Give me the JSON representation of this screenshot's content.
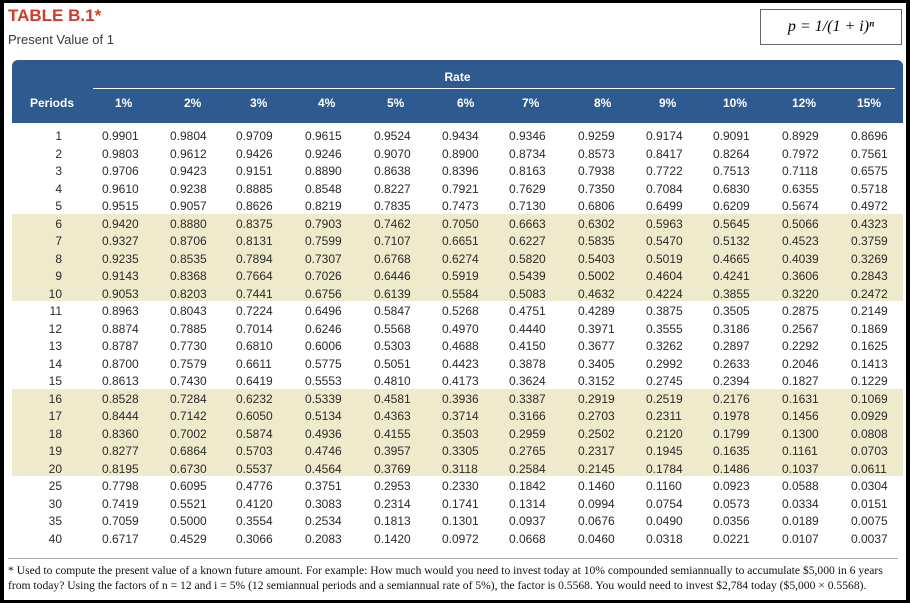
{
  "header": {
    "title": "TABLE B.1*",
    "subtitle": "Present Value of 1",
    "formula": "p = 1/(1 + i)ⁿ"
  },
  "table": {
    "rate_label": "Rate",
    "period_header": "Periods",
    "rates": [
      "1%",
      "2%",
      "3%",
      "4%",
      "5%",
      "6%",
      "7%",
      "8%",
      "9%",
      "10%",
      "12%",
      "15%"
    ],
    "rows": [
      {
        "period": "1",
        "values": [
          "0.9901",
          "0.9804",
          "0.9709",
          "0.9615",
          "0.9524",
          "0.9434",
          "0.9346",
          "0.9259",
          "0.9174",
          "0.9091",
          "0.8929",
          "0.8696"
        ]
      },
      {
        "period": "2",
        "values": [
          "0.9803",
          "0.9612",
          "0.9426",
          "0.9246",
          "0.9070",
          "0.8900",
          "0.8734",
          "0.8573",
          "0.8417",
          "0.8264",
          "0.7972",
          "0.7561"
        ]
      },
      {
        "period": "3",
        "values": [
          "0.9706",
          "0.9423",
          "0.9151",
          "0.8890",
          "0.8638",
          "0.8396",
          "0.8163",
          "0.7938",
          "0.7722",
          "0.7513",
          "0.7118",
          "0.6575"
        ]
      },
      {
        "period": "4",
        "values": [
          "0.9610",
          "0.9238",
          "0.8885",
          "0.8548",
          "0.8227",
          "0.7921",
          "0.7629",
          "0.7350",
          "0.7084",
          "0.6830",
          "0.6355",
          "0.5718"
        ]
      },
      {
        "period": "5",
        "values": [
          "0.9515",
          "0.9057",
          "0.8626",
          "0.8219",
          "0.7835",
          "0.7473",
          "0.7130",
          "0.6806",
          "0.6499",
          "0.6209",
          "0.5674",
          "0.4972"
        ]
      },
      {
        "period": "6",
        "values": [
          "0.9420",
          "0.8880",
          "0.8375",
          "0.7903",
          "0.7462",
          "0.7050",
          "0.6663",
          "0.6302",
          "0.5963",
          "0.5645",
          "0.5066",
          "0.4323"
        ]
      },
      {
        "period": "7",
        "values": [
          "0.9327",
          "0.8706",
          "0.8131",
          "0.7599",
          "0.7107",
          "0.6651",
          "0.6227",
          "0.5835",
          "0.5470",
          "0.5132",
          "0.4523",
          "0.3759"
        ]
      },
      {
        "period": "8",
        "values": [
          "0.9235",
          "0.8535",
          "0.7894",
          "0.7307",
          "0.6768",
          "0.6274",
          "0.5820",
          "0.5403",
          "0.5019",
          "0.4665",
          "0.4039",
          "0.3269"
        ]
      },
      {
        "period": "9",
        "values": [
          "0.9143",
          "0.8368",
          "0.7664",
          "0.7026",
          "0.6446",
          "0.5919",
          "0.5439",
          "0.5002",
          "0.4604",
          "0.4241",
          "0.3606",
          "0.2843"
        ]
      },
      {
        "period": "10",
        "values": [
          "0.9053",
          "0.8203",
          "0.7441",
          "0.6756",
          "0.6139",
          "0.5584",
          "0.5083",
          "0.4632",
          "0.4224",
          "0.3855",
          "0.3220",
          "0.2472"
        ]
      },
      {
        "period": "11",
        "values": [
          "0.8963",
          "0.8043",
          "0.7224",
          "0.6496",
          "0.5847",
          "0.5268",
          "0.4751",
          "0.4289",
          "0.3875",
          "0.3505",
          "0.2875",
          "0.2149"
        ]
      },
      {
        "period": "12",
        "values": [
          "0.8874",
          "0.7885",
          "0.7014",
          "0.6246",
          "0.5568",
          "0.4970",
          "0.4440",
          "0.3971",
          "0.3555",
          "0.3186",
          "0.2567",
          "0.1869"
        ]
      },
      {
        "period": "13",
        "values": [
          "0.8787",
          "0.7730",
          "0.6810",
          "0.6006",
          "0.5303",
          "0.4688",
          "0.4150",
          "0.3677",
          "0.3262",
          "0.2897",
          "0.2292",
          "0.1625"
        ]
      },
      {
        "period": "14",
        "values": [
          "0.8700",
          "0.7579",
          "0.6611",
          "0.5775",
          "0.5051",
          "0.4423",
          "0.3878",
          "0.3405",
          "0.2992",
          "0.2633",
          "0.2046",
          "0.1413"
        ]
      },
      {
        "period": "15",
        "values": [
          "0.8613",
          "0.7430",
          "0.6419",
          "0.5553",
          "0.4810",
          "0.4173",
          "0.3624",
          "0.3152",
          "0.2745",
          "0.2394",
          "0.1827",
          "0.1229"
        ]
      },
      {
        "period": "16",
        "values": [
          "0.8528",
          "0.7284",
          "0.6232",
          "0.5339",
          "0.4581",
          "0.3936",
          "0.3387",
          "0.2919",
          "0.2519",
          "0.2176",
          "0.1631",
          "0.1069"
        ]
      },
      {
        "period": "17",
        "values": [
          "0.8444",
          "0.7142",
          "0.6050",
          "0.5134",
          "0.4363",
          "0.3714",
          "0.3166",
          "0.2703",
          "0.2311",
          "0.1978",
          "0.1456",
          "0.0929"
        ]
      },
      {
        "period": "18",
        "values": [
          "0.8360",
          "0.7002",
          "0.5874",
          "0.4936",
          "0.4155",
          "0.3503",
          "0.2959",
          "0.2502",
          "0.2120",
          "0.1799",
          "0.1300",
          "0.0808"
        ]
      },
      {
        "period": "19",
        "values": [
          "0.8277",
          "0.6864",
          "0.5703",
          "0.4746",
          "0.3957",
          "0.3305",
          "0.2765",
          "0.2317",
          "0.1945",
          "0.1635",
          "0.1161",
          "0.0703"
        ]
      },
      {
        "period": "20",
        "values": [
          "0.8195",
          "0.6730",
          "0.5537",
          "0.4564",
          "0.3769",
          "0.3118",
          "0.2584",
          "0.2145",
          "0.1784",
          "0.1486",
          "0.1037",
          "0.0611"
        ]
      },
      {
        "period": "25",
        "values": [
          "0.7798",
          "0.6095",
          "0.4776",
          "0.3751",
          "0.2953",
          "0.2330",
          "0.1842",
          "0.1460",
          "0.1160",
          "0.0923",
          "0.0588",
          "0.0304"
        ]
      },
      {
        "period": "30",
        "values": [
          "0.7419",
          "0.5521",
          "0.4120",
          "0.3083",
          "0.2314",
          "0.1741",
          "0.1314",
          "0.0994",
          "0.0754",
          "0.0573",
          "0.0334",
          "0.0151"
        ]
      },
      {
        "period": "35",
        "values": [
          "0.7059",
          "0.5000",
          "0.3554",
          "0.2534",
          "0.1813",
          "0.1301",
          "0.0937",
          "0.0676",
          "0.0490",
          "0.0356",
          "0.0189",
          "0.0075"
        ]
      },
      {
        "period": "40",
        "values": [
          "0.6717",
          "0.4529",
          "0.3066",
          "0.2083",
          "0.1420",
          "0.0972",
          "0.0668",
          "0.0460",
          "0.0318",
          "0.0221",
          "0.0107",
          "0.0037"
        ]
      }
    ]
  },
  "footnote": "* Used to compute the present value of a known future amount. For example: How much would you need to invest today at 10% compounded semiannually to accumulate $5,000 in 6 years from today? Using the factors of n = 12 and i = 5% (12 semiannual periods and a semiannual rate of 5%), the factor is 0.5568. You would need to invest $2,784 today ($5,000 × 0.5568).",
  "colors": {
    "title": "#d23a2a",
    "header_bg": "#2f5a8f",
    "band_shade": "#efeacb"
  }
}
